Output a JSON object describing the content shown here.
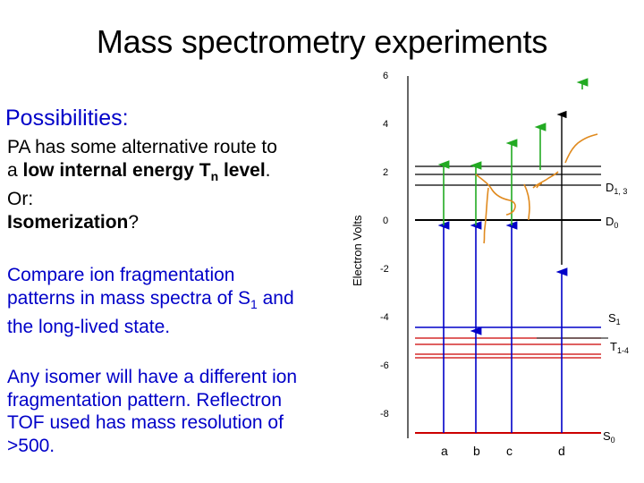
{
  "slide": {
    "title": "Mass spectrometry experiments",
    "subhead": "Possibilities:",
    "block1": {
      "line1": "PA has some alternative route to",
      "line2_pre": "a ",
      "line2_bold": "low internal energy T",
      "line2_sub": "n",
      "line2_bold2": " level",
      "line2_post": ".",
      "line3": "Or:",
      "line4_bold": "Isomerization",
      "line4_post": "?"
    },
    "block2": {
      "line1": "Compare ion fragmentation",
      "line2_pre": "patterns in mass spectra of S",
      "line2_sub": "1",
      "line2_post": " and",
      "line3": "the long-lived state."
    },
    "block3": {
      "line1": "Any isomer will have a different ion",
      "line2": "fragmentation pattern. Reflectron",
      "line3": "TOF used has mass resolution of",
      "line4": ">500."
    }
  },
  "diagram": {
    "ylabel": "Electron Volts",
    "ytick_labels": [
      "6",
      "4",
      "2",
      "0",
      "-2",
      "-4",
      "-6",
      "-8"
    ],
    "level_labels": {
      "d13_main": "D",
      "d13_sub": "1, 3",
      "d0_main": "D",
      "d0_sub": "0",
      "s1_main": "S",
      "s1_sub": "1",
      "t_main": "T",
      "t_sub": "1-4",
      "s0_main": "S",
      "s0_sub": "0"
    },
    "column_labels": [
      "a",
      "b",
      "c",
      "d"
    ],
    "colors": {
      "black": "#000000",
      "blue": "#0000c8",
      "green": "#22aa22",
      "orange": "#e08a1e",
      "red": "#cc0000"
    }
  }
}
